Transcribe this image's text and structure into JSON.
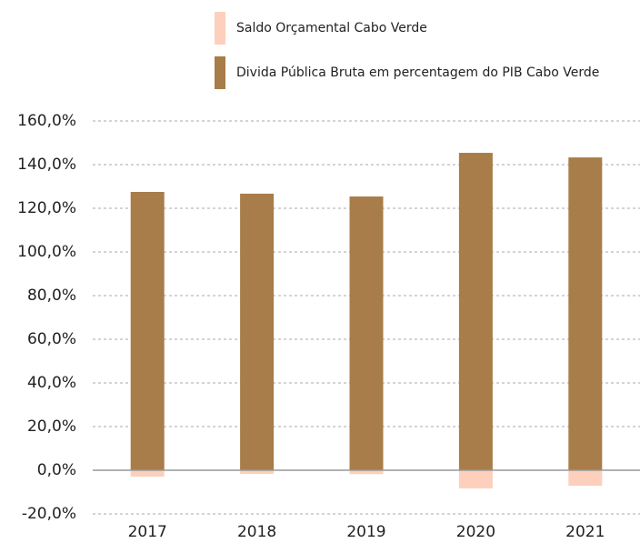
{
  "chart_data": {
    "type": "bar",
    "categories": [
      "2017",
      "2018",
      "2019",
      "2020",
      "2021"
    ],
    "series": [
      {
        "name": "Saldo Orçamental Cabo Verde",
        "color": "#fcd0bd",
        "values": [
          -2.9,
          -1.7,
          -1.8,
          -8.3,
          -7.1
        ]
      },
      {
        "name": "Divida Pública Bruta em percentagem do PIB Cabo Verde",
        "color": "#a87d49",
        "values": [
          127.5,
          126.7,
          125.4,
          145.4,
          143.3
        ]
      }
    ],
    "ylim": [
      -20,
      160
    ],
    "yticks": [
      {
        "value": -20,
        "label": "-20,0%"
      },
      {
        "value": 0,
        "label": "0,0%"
      },
      {
        "value": 20,
        "label": "20,0%"
      },
      {
        "value": 40,
        "label": "40,0%"
      },
      {
        "value": 60,
        "label": "60,0%"
      },
      {
        "value": 80,
        "label": "80,0%"
      },
      {
        "value": 100,
        "label": "100,0%"
      },
      {
        "value": 120,
        "label": "120,0%"
      },
      {
        "value": 140,
        "label": "140,0%"
      },
      {
        "value": 160,
        "label": "160,0%"
      }
    ],
    "grid": true
  }
}
